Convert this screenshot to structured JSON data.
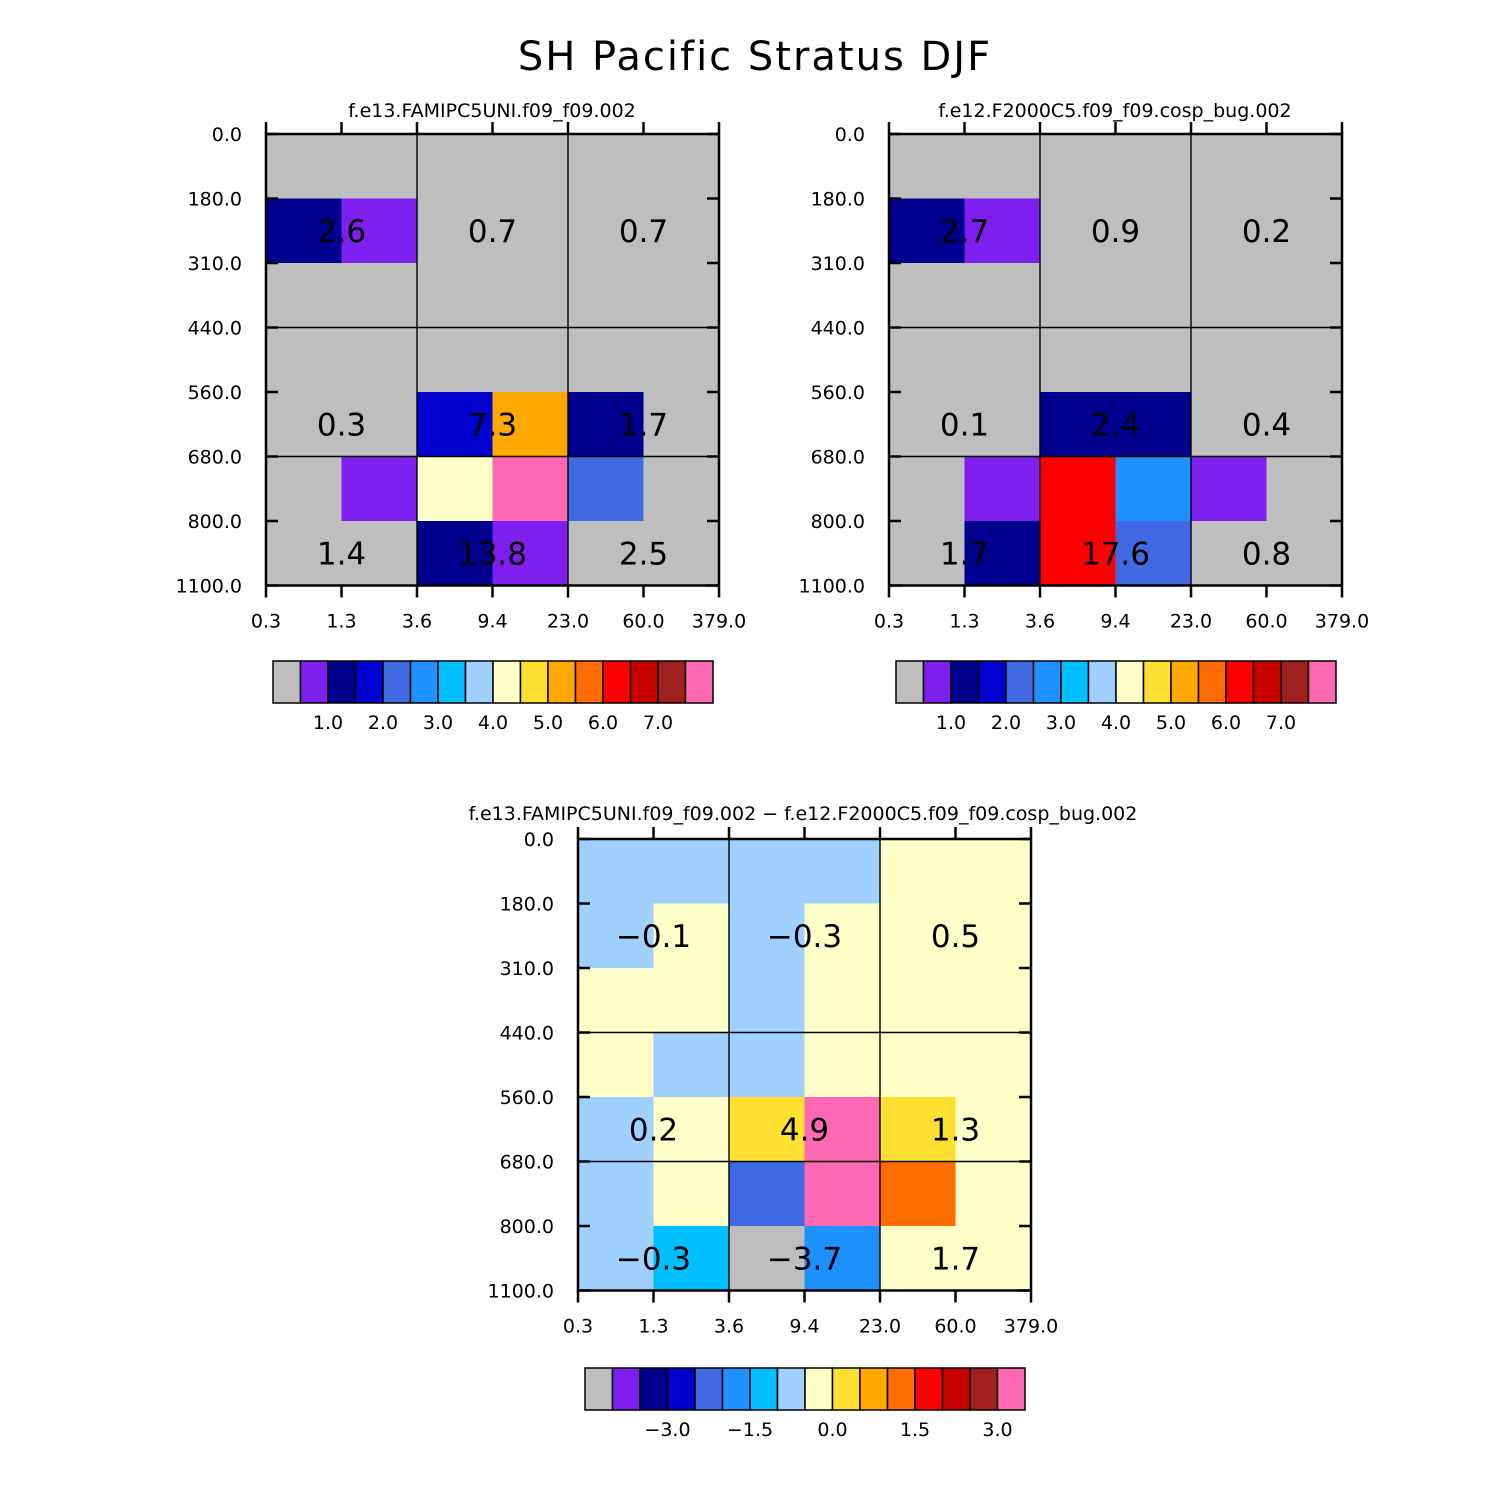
{
  "figure_title": "SH Pacific Stratus DJF",
  "chart_data": [
    {
      "type": "heatmap",
      "title": "f.e13.FAMIPC5UNI.f09_f09.002",
      "x_ticks": [
        "0.3",
        "1.3",
        "3.6",
        "9.4",
        "23.0",
        "60.0",
        "379.0"
      ],
      "y_ticks": [
        "0.0",
        "180.0",
        "310.0",
        "440.0",
        "560.0",
        "680.0",
        "800.0",
        "1100.0"
      ],
      "cells": [
        [
          0,
          0,
          0,
          0,
          0,
          0
        ],
        [
          2,
          1,
          0,
          0,
          0,
          0
        ],
        [
          0,
          0,
          0,
          0,
          0,
          0
        ],
        [
          0,
          0,
          0,
          0,
          0,
          0
        ],
        [
          0,
          0,
          3,
          10,
          2,
          0
        ],
        [
          0,
          1,
          8,
          15,
          4,
          0
        ],
        [
          0,
          0,
          2,
          1,
          0,
          0
        ]
      ],
      "group_values": [
        [
          "2.6",
          "0.7",
          "0.7"
        ],
        [
          "0.3",
          "7.3",
          "1.7"
        ],
        [
          "1.4",
          "13.8",
          "2.5"
        ]
      ],
      "legend_labels": [
        "1.0",
        "2.0",
        "3.0",
        "4.0",
        "5.0",
        "6.0",
        "7.0"
      ]
    },
    {
      "type": "heatmap",
      "title": "f.e12.F2000C5.f09_f09.cosp_bug.002",
      "x_ticks": [
        "0.3",
        "1.3",
        "3.6",
        "9.4",
        "23.0",
        "60.0",
        "379.0"
      ],
      "y_ticks": [
        "0.0",
        "180.0",
        "310.0",
        "440.0",
        "560.0",
        "680.0",
        "800.0",
        "1100.0"
      ],
      "cells": [
        [
          0,
          0,
          0,
          0,
          0,
          0
        ],
        [
          2,
          1,
          0,
          0,
          0,
          0
        ],
        [
          0,
          0,
          0,
          0,
          0,
          0
        ],
        [
          0,
          0,
          0,
          0,
          0,
          0
        ],
        [
          0,
          0,
          2,
          2,
          0,
          0
        ],
        [
          0,
          1,
          12,
          5,
          1,
          0
        ],
        [
          0,
          2,
          12,
          4,
          0,
          0
        ]
      ],
      "group_values": [
        [
          "2.7",
          "0.9",
          "0.2"
        ],
        [
          "0.1",
          "2.4",
          "0.4"
        ],
        [
          "1.7",
          "17.6",
          "0.8"
        ]
      ],
      "legend_labels": [
        "1.0",
        "2.0",
        "3.0",
        "4.0",
        "5.0",
        "6.0",
        "7.0"
      ]
    },
    {
      "type": "heatmap",
      "title": "f.e13.FAMIPC5UNI.f09_f09.002 − f.e12.F2000C5.f09_f09.cosp_bug.002",
      "x_ticks": [
        "0.3",
        "1.3",
        "3.6",
        "9.4",
        "23.0",
        "60.0",
        "379.0"
      ],
      "y_ticks": [
        "0.0",
        "180.0",
        "310.0",
        "440.0",
        "560.0",
        "680.0",
        "800.0",
        "1100.0"
      ],
      "cells": [
        [
          7,
          7,
          7,
          7,
          8,
          8
        ],
        [
          7,
          8,
          7,
          8,
          8,
          8
        ],
        [
          8,
          8,
          7,
          8,
          8,
          8
        ],
        [
          8,
          7,
          7,
          8,
          8,
          8
        ],
        [
          7,
          8,
          9,
          15,
          9,
          8
        ],
        [
          7,
          8,
          4,
          15,
          11,
          8
        ],
        [
          7,
          6,
          0,
          5,
          8,
          8
        ]
      ],
      "group_values": [
        [
          "−0.1",
          "−0.3",
          "0.5"
        ],
        [
          "0.2",
          "4.9",
          "1.3"
        ],
        [
          "−0.3",
          "−3.7",
          "1.7"
        ]
      ],
      "legend_labels": [
        "−3.0",
        "−1.5",
        "0.0",
        "1.5",
        "3.0"
      ]
    }
  ],
  "palette": [
    "#bebebe",
    "#7f1fef",
    "#00008f",
    "#0000cf",
    "#4169e1",
    "#1e90ff",
    "#00bfff",
    "#a0d0ff",
    "#ffffc8",
    "#ffe030",
    "#ffa800",
    "#ff6c00",
    "#ff0000",
    "#c80000",
    "#a02020",
    "#ff69b4"
  ]
}
